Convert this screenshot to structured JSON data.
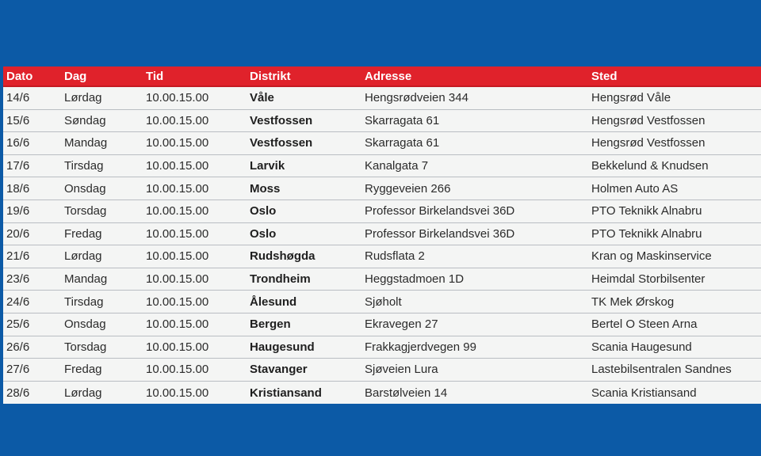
{
  "table": {
    "headers": {
      "dato": "Dato",
      "dag": "Dag",
      "tid": "Tid",
      "distrikt": "Distrikt",
      "adresse": "Adresse",
      "sted": "Sted"
    },
    "rows": [
      {
        "dato": "14/6",
        "dag": "Lørdag",
        "tid": "10.00.15.00",
        "distrikt": "Våle",
        "adresse": "Hengsrødveien 344",
        "sted": "Hengsrød Våle"
      },
      {
        "dato": "15/6",
        "dag": "Søndag",
        "tid": "10.00.15.00",
        "distrikt": "Vestfossen",
        "adresse": "Skarragata 61",
        "sted": "Hengsrød Vestfossen"
      },
      {
        "dato": "16/6",
        "dag": "Mandag",
        "tid": "10.00.15.00",
        "distrikt": "Vestfossen",
        "adresse": "Skarragata 61",
        "sted": "Hengsrød Vestfossen"
      },
      {
        "dato": "17/6",
        "dag": "Tirsdag",
        "tid": "10.00.15.00",
        "distrikt": "Larvik",
        "adresse": "Kanalgata 7",
        "sted": "Bekkelund & Knudsen"
      },
      {
        "dato": "18/6",
        "dag": "Onsdag",
        "tid": "10.00.15.00",
        "distrikt": "Moss",
        "adresse": "Ryggeveien 266",
        "sted": "Holmen Auto AS"
      },
      {
        "dato": "19/6",
        "dag": "Torsdag",
        "tid": "10.00.15.00",
        "distrikt": "Oslo",
        "adresse": "Professor Birkelandsvei 36D",
        "sted": "PTO Teknikk Alnabru"
      },
      {
        "dato": "20/6",
        "dag": "Fredag",
        "tid": "10.00.15.00",
        "distrikt": "Oslo",
        "adresse": "Professor Birkelandsvei 36D",
        "sted": "PTO Teknikk Alnabru"
      },
      {
        "dato": "21/6",
        "dag": "Lørdag",
        "tid": "10.00.15.00",
        "distrikt": "Rudshøgda",
        "adresse": "Rudsflata 2",
        "sted": "Kran og Maskinservice"
      },
      {
        "dato": "23/6",
        "dag": "Mandag",
        "tid": "10.00.15.00",
        "distrikt": "Trondheim",
        "adresse": "Heggstadmoen 1D",
        "sted": "Heimdal Storbilsenter"
      },
      {
        "dato": "24/6",
        "dag": "Tirsdag",
        "tid": "10.00.15.00",
        "distrikt": "Ålesund",
        "adresse": "Sjøholt",
        "sted": "TK Mek Ørskog"
      },
      {
        "dato": "25/6",
        "dag": "Onsdag",
        "tid": "10.00.15.00",
        "distrikt": "Bergen",
        "adresse": "Ekravegen 27",
        "sted": "Bertel O Steen Arna"
      },
      {
        "dato": "26/6",
        "dag": "Torsdag",
        "tid": "10.00.15.00",
        "distrikt": "Haugesund",
        "adresse": "Frakkagjerdvegen 99",
        "sted": "Scania Haugesund"
      },
      {
        "dato": "27/6",
        "dag": "Fredag",
        "tid": "10.00.15.00",
        "distrikt": "Stavanger",
        "adresse": "Sjøveien Lura",
        "sted": "Lastebilsentralen Sandnes"
      },
      {
        "dato": "28/6",
        "dag": "Lørdag",
        "tid": "10.00.15.00",
        "distrikt": "Kristiansand",
        "adresse": "Barstølveien 14",
        "sted": "Scania Kristiansand"
      }
    ]
  }
}
